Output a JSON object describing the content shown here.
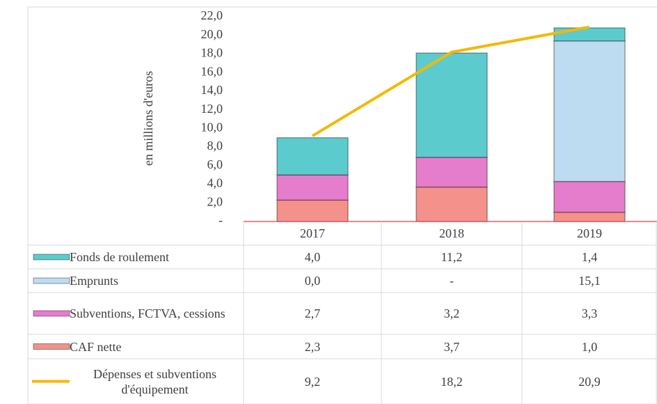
{
  "chart_data": {
    "type": "bar",
    "stacked": true,
    "y_axis_label": "en millions d'euros",
    "categories": [
      "2017",
      "2018",
      "2019"
    ],
    "ylim": [
      0,
      22
    ],
    "yticks": [
      {
        "value": 0,
        "label": "-"
      },
      {
        "value": 2,
        "label": "2,0"
      },
      {
        "value": 4,
        "label": "4,0"
      },
      {
        "value": 6,
        "label": "6,0"
      },
      {
        "value": 8,
        "label": "8,0"
      },
      {
        "value": 10,
        "label": "10,0"
      },
      {
        "value": 12,
        "label": "12,0"
      },
      {
        "value": 14,
        "label": "14,0"
      },
      {
        "value": 16,
        "label": "16,0"
      },
      {
        "value": 18,
        "label": "18,0"
      },
      {
        "value": 20,
        "label": "20,0"
      },
      {
        "value": 22,
        "label": "22,0"
      }
    ],
    "series": [
      {
        "name": "Fonds de roulement",
        "type": "bar",
        "color": "#5ccbce",
        "values": [
          4.0,
          11.2,
          1.4
        ],
        "value_labels": [
          "4,0",
          "11,2",
          "1,4"
        ]
      },
      {
        "name": "Emprunts",
        "type": "bar",
        "color": "#bddcf2",
        "values": [
          0.0,
          0,
          15.1
        ],
        "value_labels": [
          "0,0",
          "-",
          "15,1"
        ]
      },
      {
        "name": "Subventions, FCTVA, cessions",
        "type": "bar",
        "color": "#e67ccc",
        "values": [
          2.7,
          3.2,
          3.3
        ],
        "value_labels": [
          "2,7",
          "3,2",
          "3,3"
        ]
      },
      {
        "name": "CAF nette",
        "type": "bar",
        "color": "#f3918a",
        "values": [
          2.3,
          3.7,
          1.0
        ],
        "value_labels": [
          "2,3",
          "3,7",
          "1,0"
        ]
      },
      {
        "name": "Dépenses et subventions d'équipement",
        "type": "line",
        "color": "#f5b800",
        "values": [
          9.2,
          18.2,
          20.9
        ],
        "value_labels": [
          "9,2",
          "18,2",
          "20,9"
        ]
      }
    ]
  }
}
